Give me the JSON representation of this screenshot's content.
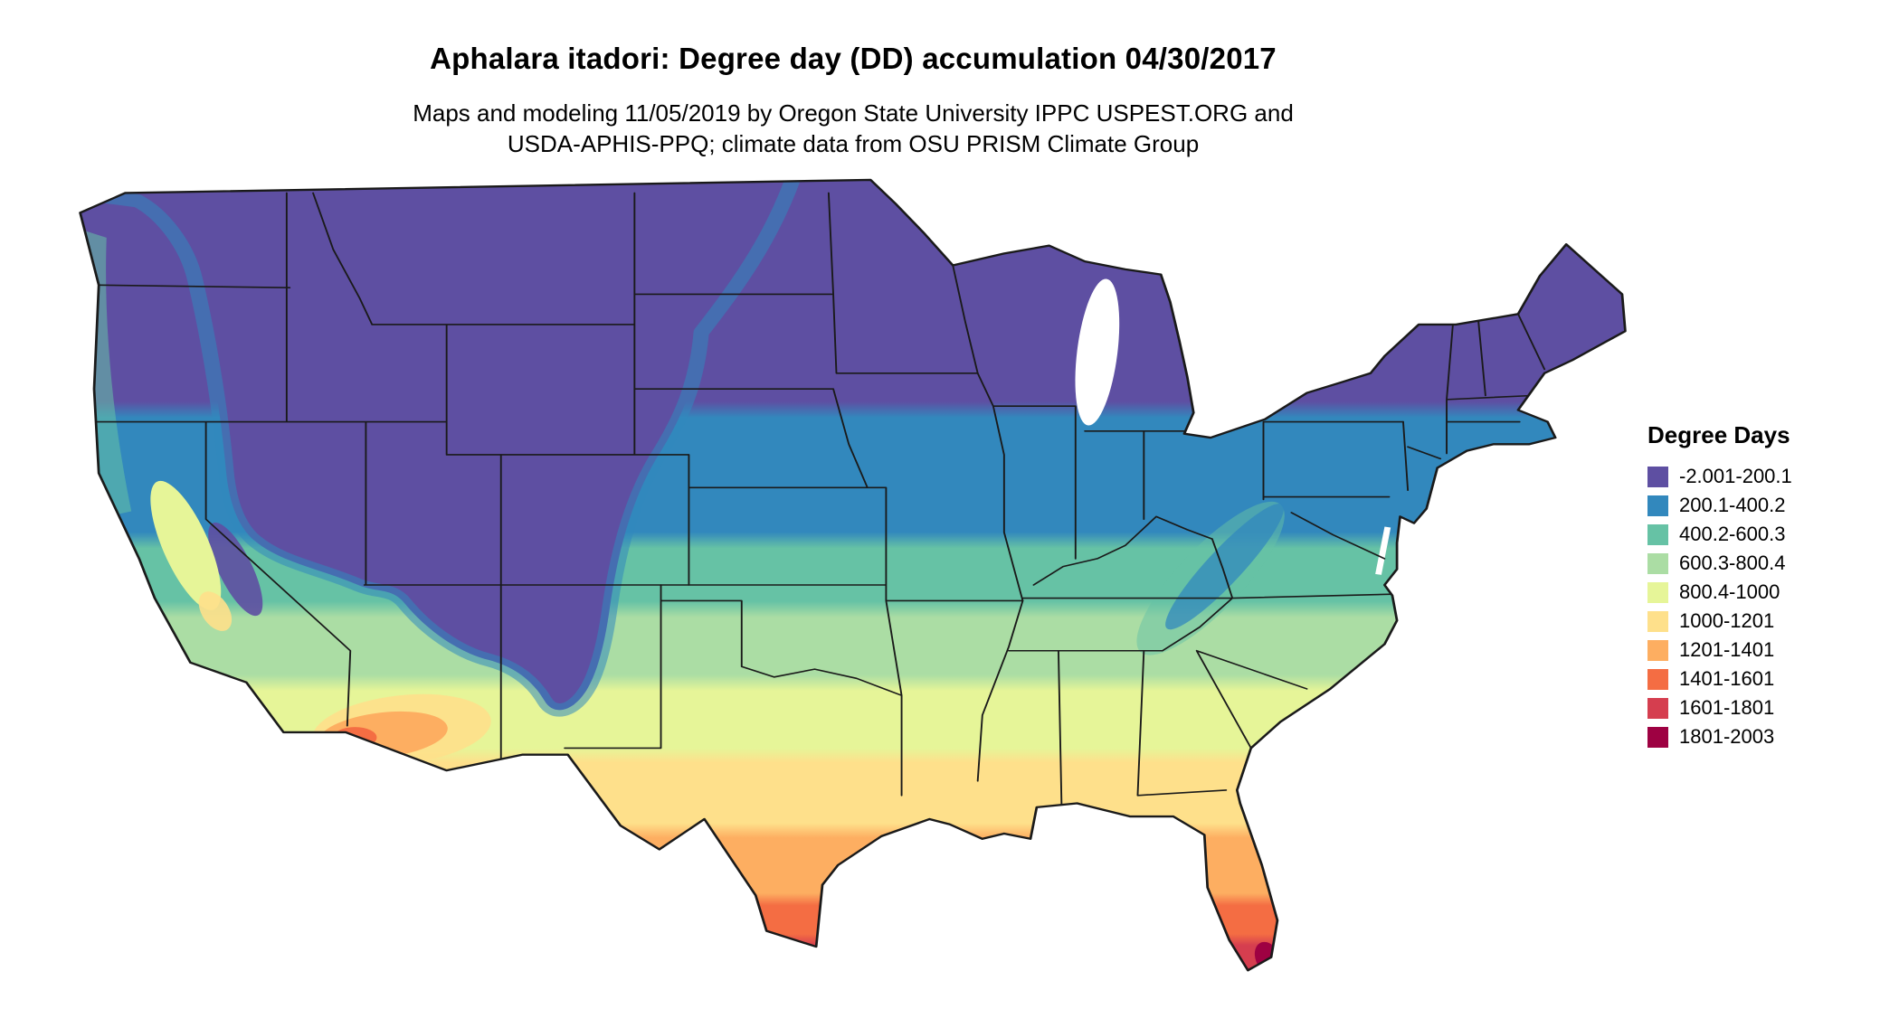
{
  "title": "Aphalara itadori: Degree day (DD) accumulation 04/30/2017",
  "subtitle_line1": "Maps and modeling 11/05/2019 by Oregon State University IPPC USPEST.ORG and",
  "subtitle_line2": "USDA-APHIS-PPQ; climate data from OSU PRISM Climate Group",
  "legend": {
    "title": "Degree Days",
    "entries": [
      {
        "label": "-2.001-200.1",
        "color": "#5E4FA2"
      },
      {
        "label": "200.1-400.2",
        "color": "#3288BD"
      },
      {
        "label": "400.2-600.3",
        "color": "#66C2A5"
      },
      {
        "label": "600.3-800.4",
        "color": "#ABDDA4"
      },
      {
        "label": "800.4-1000",
        "color": "#E6F598"
      },
      {
        "label": "1000-1201",
        "color": "#FEE08B"
      },
      {
        "label": "1201-1401",
        "color": "#FDAE61"
      },
      {
        "label": "1401-1601",
        "color": "#F46D43"
      },
      {
        "label": "1601-1801",
        "color": "#D53E4F"
      },
      {
        "label": "1801-2003",
        "color": "#9E0142"
      }
    ]
  },
  "map": {
    "border_color": "#1A1A1A"
  }
}
